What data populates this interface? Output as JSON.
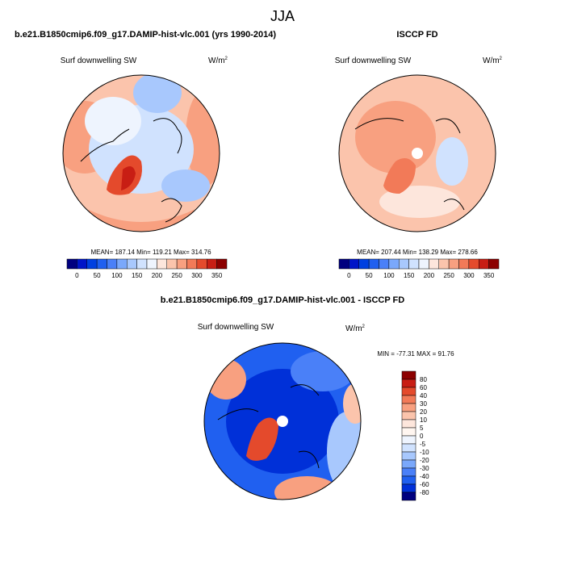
{
  "title": "JJA",
  "panels": [
    {
      "title": "b.e21.B1850cmip6.f09_g17.DAMIP-hist-vlc.001 (yrs 1990-2014)",
      "variable": "Surf downwelling SW",
      "units": "W/m",
      "units_sup": "2",
      "stats": "MEAN= 187.14  Min= 119.21  Max= 314.76"
    },
    {
      "title": "ISCCP FD",
      "variable": "Surf downwelling SW",
      "units": "W/m",
      "units_sup": "2",
      "stats": "MEAN= 207.44  Min= 138.29  Max= 278.66"
    },
    {
      "title": "b.e21.B1850cmip6.f09_g17.DAMIP-hist-vlc.001 - ISCCP FD",
      "variable": "Surf downwelling SW",
      "units": "W/m",
      "units_sup": "2",
      "stats": "MIN = -77.31  MAX =  91.76"
    }
  ],
  "colorbar": {
    "colors": [
      "#00007f",
      "#0015c8",
      "#0040e0",
      "#2060f0",
      "#4a80f8",
      "#7aa8fb",
      "#a8c8fd",
      "#d0e2fe",
      "#eef4fe",
      "#fde6dc",
      "#fbc4ac",
      "#f8a080",
      "#f27a58",
      "#e44a2c",
      "#c81e14",
      "#8c0000"
    ],
    "labels": [
      "0",
      "50",
      "100",
      "150",
      "200",
      "250",
      "300",
      "350"
    ]
  },
  "diff_colorbar": {
    "colors": [
      "#8c0000",
      "#c81e14",
      "#e44a2c",
      "#f27a58",
      "#f8a080",
      "#fbc4ac",
      "#fde6dc",
      "#fff6f0",
      "#eef4fe",
      "#d0e2fe",
      "#a8c8fd",
      "#7aa8fb",
      "#4a80f8",
      "#2060f0",
      "#0030d8",
      "#00007f"
    ],
    "labels": [
      "80",
      "60",
      "40",
      "30",
      "20",
      "10",
      "5",
      "0",
      "-5",
      "-10",
      "-20",
      "-30",
      "-40",
      "-60",
      "-80"
    ]
  }
}
